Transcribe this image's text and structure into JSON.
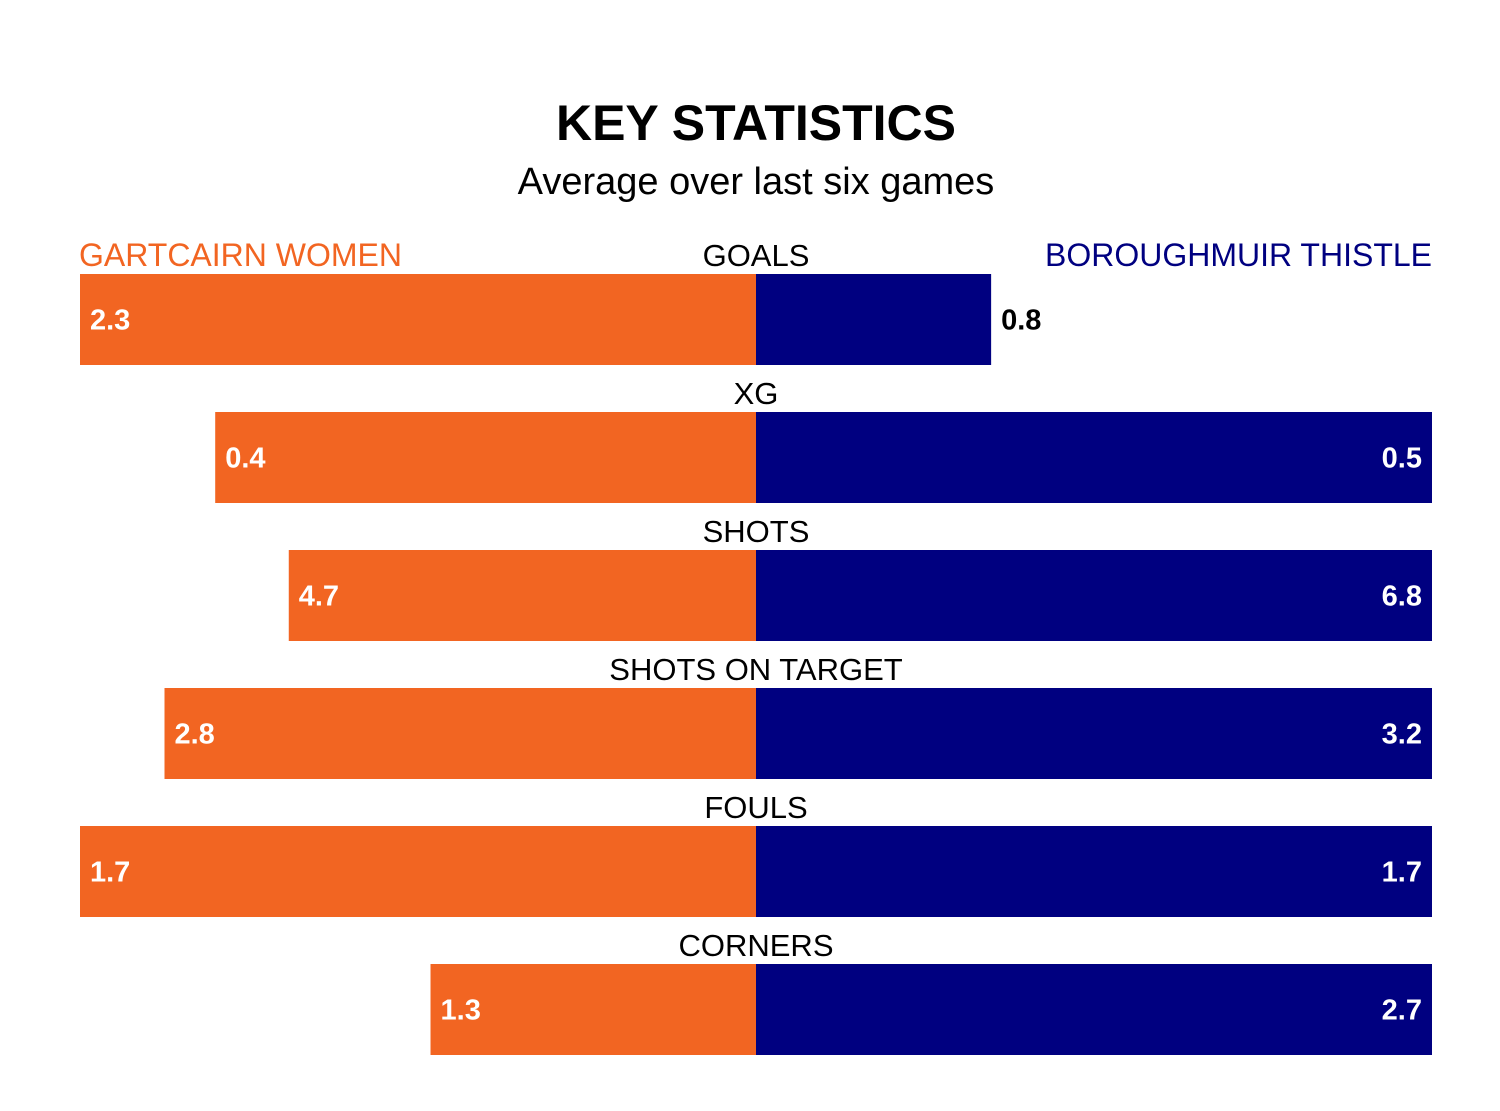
{
  "header": {
    "title": "KEY STATISTICS",
    "subtitle": "Average over last six games"
  },
  "teams": {
    "home": {
      "name": "GARTCAIRN WOMEN",
      "color": "#F26522"
    },
    "away": {
      "name": "BOROUGHMUIR THISTLE",
      "color": "#000080"
    }
  },
  "colors": {
    "label_inside": "#FFFFFF",
    "label_outside": "#000000"
  },
  "chart_data": {
    "type": "bar",
    "orientation": "horizontal-diverging",
    "title": "KEY STATISTICS",
    "subtitle": "Average over last six games",
    "categories": [
      "GOALS",
      "XG",
      "SHOTS",
      "SHOTS ON TARGET",
      "FOULS",
      "CORNERS"
    ],
    "series": [
      {
        "name": "GARTCAIRN WOMEN",
        "values": [
          2.3,
          0.4,
          4.7,
          2.8,
          1.7,
          1.3
        ],
        "display": [
          "2.3",
          "0.4",
          "4.7",
          "2.8",
          "1.7",
          "1.3"
        ]
      },
      {
        "name": "BOROUGHMUIR THISTLE",
        "values": [
          0.8,
          0.5,
          6.8,
          3.2,
          1.7,
          2.7
        ],
        "display": [
          "0.8",
          "0.5",
          "6.8",
          "3.2",
          "1.7",
          "2.7"
        ]
      }
    ],
    "scale": "each row scaled to the larger of the two values",
    "grid": false,
    "legend_placement": "top-left and top-right"
  }
}
